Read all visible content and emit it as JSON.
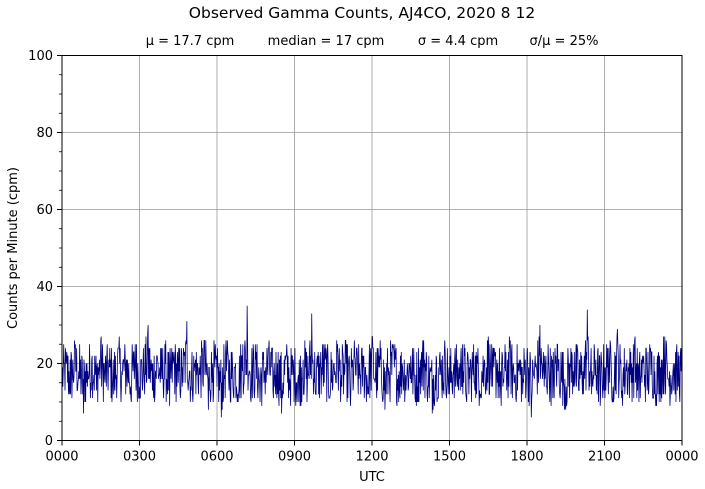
{
  "chart_data": {
    "type": "line",
    "title": "Observed Gamma Counts, AJ4CO, 2020 8 12",
    "stats": {
      "mean": "μ = 17.7 cpm",
      "median": "median = 17 cpm",
      "sigma": "σ = 4.4 cpm",
      "ratio": "σ/μ = 25%"
    },
    "xlabel": "UTC",
    "ylabel": "Counts per Minute (cpm)",
    "xlim": [
      0,
      1440
    ],
    "ylim": [
      0,
      100
    ],
    "x_ticks": [
      {
        "value": 0,
        "label": "0000"
      },
      {
        "value": 180,
        "label": "0300"
      },
      {
        "value": 360,
        "label": "0600"
      },
      {
        "value": 540,
        "label": "0900"
      },
      {
        "value": 720,
        "label": "1200"
      },
      {
        "value": 900,
        "label": "1500"
      },
      {
        "value": 1080,
        "label": "1800"
      },
      {
        "value": 1260,
        "label": "2100"
      },
      {
        "value": 1440,
        "label": "0000"
      }
    ],
    "y_ticks": [
      {
        "value": 0,
        "label": "0"
      },
      {
        "value": 20,
        "label": "20"
      },
      {
        "value": 40,
        "label": "40"
      },
      {
        "value": 60,
        "label": "60"
      },
      {
        "value": 80,
        "label": "80"
      },
      {
        "value": 100,
        "label": "100"
      }
    ],
    "grid": true,
    "series_color": "#000080",
    "series": [
      {
        "x_unit": "minutes since 0000 UTC",
        "points": [
          [
            0,
            14
          ],
          [
            10,
            20
          ],
          [
            20,
            12
          ],
          [
            30,
            24
          ],
          [
            40,
            16
          ],
          [
            50,
            7
          ],
          [
            60,
            18
          ],
          [
            70,
            22
          ],
          [
            80,
            13
          ],
          [
            90,
            26
          ],
          [
            100,
            15
          ],
          [
            110,
            19
          ],
          [
            120,
            12
          ],
          [
            130,
            24
          ],
          [
            140,
            17
          ],
          [
            150,
            21
          ],
          [
            160,
            11
          ],
          [
            170,
            25
          ],
          [
            180,
            14
          ],
          [
            190,
            18
          ],
          [
            200,
            30
          ],
          [
            210,
            13
          ],
          [
            220,
            22
          ],
          [
            230,
            16
          ],
          [
            240,
            20
          ],
          [
            250,
            9
          ],
          [
            260,
            23
          ],
          [
            270,
            15
          ],
          [
            280,
            19
          ],
          [
            290,
            31
          ],
          [
            300,
            13
          ],
          [
            310,
            21
          ],
          [
            320,
            17
          ],
          [
            330,
            26
          ],
          [
            340,
            8
          ],
          [
            350,
            20
          ],
          [
            360,
            14
          ],
          [
            370,
            6
          ],
          [
            380,
            23
          ],
          [
            390,
            16
          ],
          [
            400,
            19
          ],
          [
            410,
            12
          ],
          [
            420,
            25
          ],
          [
            430,
            35
          ],
          [
            440,
            15
          ],
          [
            450,
            21
          ],
          [
            460,
            10
          ],
          [
            470,
            18
          ],
          [
            480,
            24
          ],
          [
            490,
            13
          ],
          [
            500,
            20
          ],
          [
            510,
            7
          ],
          [
            520,
            22
          ],
          [
            530,
            14
          ],
          [
            540,
            17
          ],
          [
            550,
            10
          ],
          [
            560,
            21
          ],
          [
            570,
            15
          ],
          [
            580,
            33
          ],
          [
            590,
            12
          ],
          [
            600,
            19
          ],
          [
            610,
            23
          ],
          [
            620,
            11
          ],
          [
            630,
            18
          ],
          [
            640,
            25
          ],
          [
            650,
            14
          ],
          [
            660,
            20
          ],
          [
            670,
            9
          ],
          [
            680,
            22
          ],
          [
            690,
            16
          ],
          [
            700,
            19
          ],
          [
            710,
            12
          ],
          [
            720,
            27
          ],
          [
            730,
            14
          ],
          [
            740,
            21
          ],
          [
            750,
            8
          ],
          [
            760,
            18
          ],
          [
            770,
            24
          ],
          [
            780,
            13
          ],
          [
            790,
            20
          ],
          [
            800,
            16
          ],
          [
            810,
            22
          ],
          [
            820,
            11
          ],
          [
            830,
            19
          ],
          [
            840,
            26
          ],
          [
            850,
            14
          ],
          [
            860,
            7
          ],
          [
            870,
            21
          ],
          [
            880,
            17
          ],
          [
            890,
            23
          ],
          [
            900,
            12
          ],
          [
            910,
            20
          ],
          [
            920,
            15
          ],
          [
            930,
            25
          ],
          [
            940,
            10
          ],
          [
            950,
            18
          ],
          [
            960,
            22
          ],
          [
            970,
            13
          ],
          [
            980,
            19
          ],
          [
            990,
            27
          ],
          [
            1000,
            14
          ],
          [
            1010,
            21
          ],
          [
            1020,
            9
          ],
          [
            1030,
            18
          ],
          [
            1040,
            24
          ],
          [
            1050,
            15
          ],
          [
            1060,
            20
          ],
          [
            1070,
            12
          ],
          [
            1080,
            23
          ],
          [
            1090,
            6
          ],
          [
            1100,
            19
          ],
          [
            1110,
            30
          ],
          [
            1120,
            14
          ],
          [
            1130,
            21
          ],
          [
            1140,
            11
          ],
          [
            1150,
            25
          ],
          [
            1160,
            16
          ],
          [
            1170,
            8
          ],
          [
            1180,
            20
          ],
          [
            1190,
            23
          ],
          [
            1200,
            13
          ],
          [
            1210,
            18
          ],
          [
            1220,
            34
          ],
          [
            1230,
            12
          ],
          [
            1240,
            21
          ],
          [
            1250,
            9
          ],
          [
            1260,
            19
          ],
          [
            1270,
            24
          ],
          [
            1280,
            14
          ],
          [
            1290,
            29
          ],
          [
            1300,
            11
          ],
          [
            1310,
            20
          ],
          [
            1320,
            17
          ],
          [
            1330,
            26
          ],
          [
            1340,
            10
          ],
          [
            1350,
            21
          ],
          [
            1360,
            15
          ],
          [
            1370,
            23
          ],
          [
            1380,
            12
          ],
          [
            1390,
            19
          ],
          [
            1400,
            27
          ],
          [
            1410,
            14
          ],
          [
            1420,
            20
          ],
          [
            1430,
            16
          ],
          [
            1440,
            18
          ]
        ]
      }
    ]
  }
}
